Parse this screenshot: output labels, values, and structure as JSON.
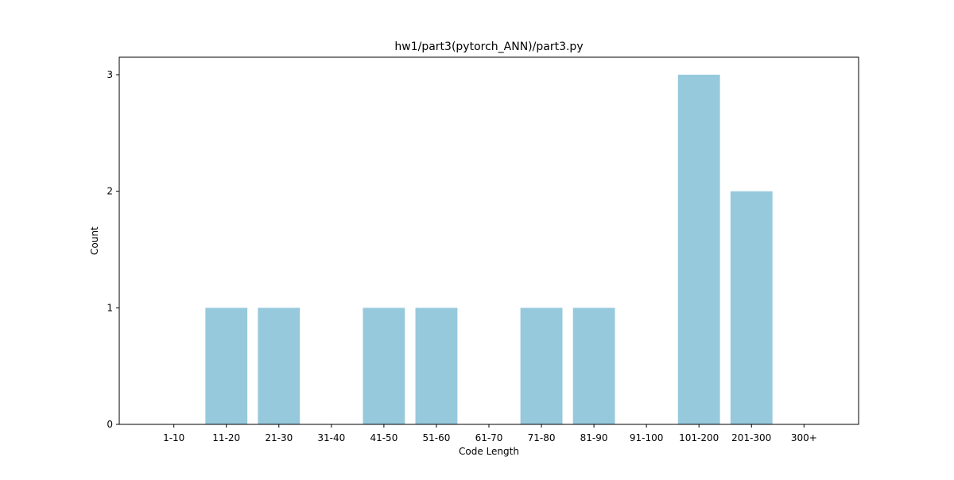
{
  "chart_data": {
    "type": "bar",
    "title": "hw1/part3(pytorch_ANN)/part3.py",
    "xlabel": "Code Length",
    "ylabel": "Count",
    "categories": [
      "1-10",
      "11-20",
      "21-30",
      "31-40",
      "41-50",
      "51-60",
      "61-70",
      "71-80",
      "81-90",
      "91-100",
      "101-200",
      "201-300",
      "300+"
    ],
    "values": [
      0,
      1,
      1,
      0,
      1,
      1,
      0,
      1,
      1,
      0,
      3,
      2,
      0
    ],
    "yticks": [
      0,
      1,
      2,
      3
    ],
    "ylim": [
      0,
      3.15
    ],
    "bar_color": "#96c9dc",
    "grid": false,
    "legend": "none"
  }
}
